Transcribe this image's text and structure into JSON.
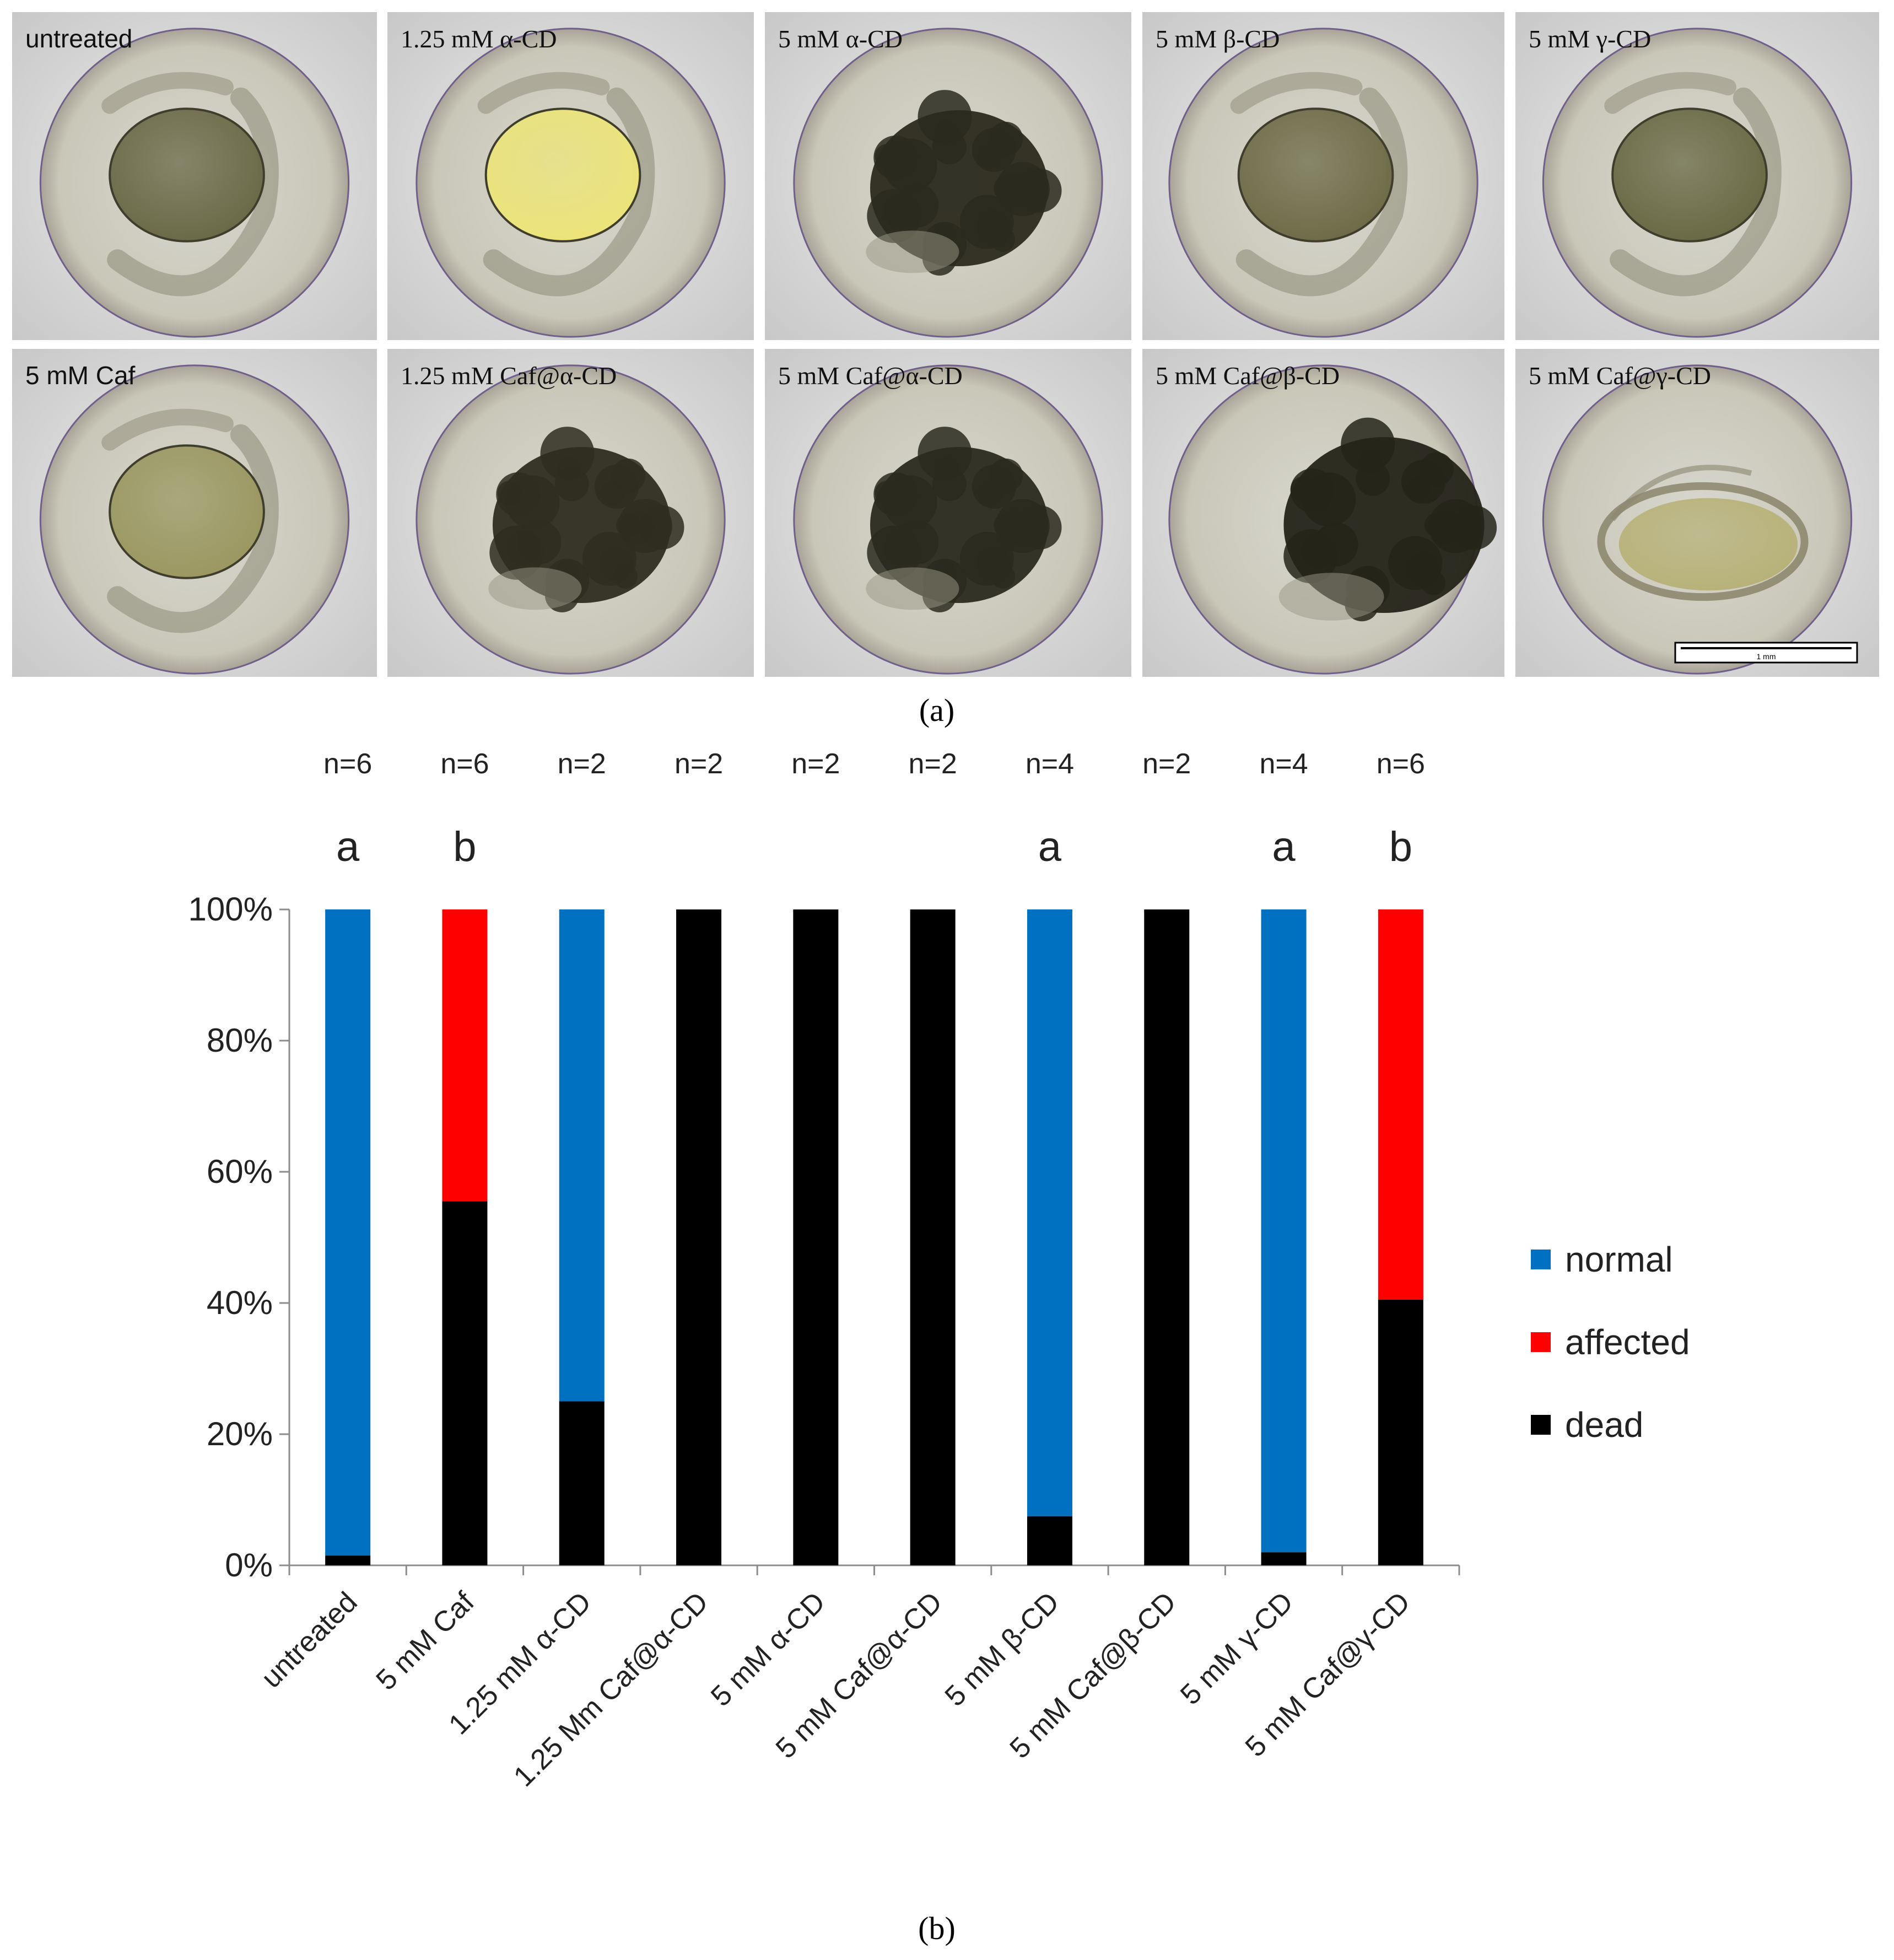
{
  "figure": {
    "panel_a_caption": "(a)",
    "panel_b_caption": "(b)"
  },
  "images": {
    "tiles": [
      {
        "label": "untreated",
        "state": "normal",
        "yolk_color": "#6b6a48"
      },
      {
        "label": "1.25 mM α-CD",
        "state": "normal",
        "yolk_color": "#ece47a"
      },
      {
        "label": "5 mM α-CD",
        "state": "dead",
        "yolk_color": "#2b2a1e"
      },
      {
        "label": "5 mM β-CD",
        "state": "normal",
        "yolk_color": "#6e6c48"
      },
      {
        "label": "5 mM γ-CD",
        "state": "normal",
        "yolk_color": "#6a6a46"
      },
      {
        "label": "5 mM Caf",
        "state": "normal",
        "yolk_color": "#9b9862"
      },
      {
        "label": "1.25 mM Caf@α-CD",
        "state": "dead",
        "yolk_color": "#2e2d20"
      },
      {
        "label": "5 mM Caf@α-CD",
        "state": "dead",
        "yolk_color": "#2b2a1f"
      },
      {
        "label": "5 mM Caf@β-CD",
        "state": "dead",
        "yolk_color": "#252419"
      },
      {
        "label": "5 mM Caf@γ-CD",
        "state": "affected",
        "yolk_color": "#b8b27a"
      }
    ],
    "scale_bar_label": "1 mm"
  },
  "chart_data": {
    "type": "bar",
    "stacked": true,
    "categories": [
      "untreated",
      "5 mM Caf",
      "1.25 mM α-CD",
      "1.25 Mm Caf@α-CD",
      "5 mM α-CD",
      "5 mM Caf@α-CD",
      "5 mM β-CD",
      "5 mM Caf@β-CD",
      "5 mM γ-CD",
      "5 mM Caf@γ-CD"
    ],
    "n_labels": [
      "n=6",
      "n=6",
      "n=2",
      "n=2",
      "n=2",
      "n=2",
      "n=4",
      "n=2",
      "n=4",
      "n=6"
    ],
    "significance": [
      "a",
      "b",
      "",
      "",
      "",
      "",
      "a",
      "",
      "a",
      "b"
    ],
    "series": [
      {
        "name": "dead",
        "color": "#000000",
        "values": [
          1.5,
          55.5,
          25,
          100,
          100,
          100,
          7.5,
          100,
          2,
          40.5
        ]
      },
      {
        "name": "affected",
        "color": "#ff0000",
        "values": [
          0,
          44.5,
          0,
          0,
          0,
          0,
          0,
          0,
          0,
          59.5
        ]
      },
      {
        "name": "normal",
        "color": "#0070c0",
        "values": [
          98.5,
          0,
          75,
          0,
          0,
          0,
          92.5,
          0,
          98,
          0
        ]
      }
    ],
    "legend_order": [
      "normal",
      "affected",
      "dead"
    ],
    "ylim": [
      0,
      100
    ],
    "yticks": [
      "0%",
      "20%",
      "40%",
      "60%",
      "80%",
      "100%"
    ],
    "legend_position": "right"
  }
}
